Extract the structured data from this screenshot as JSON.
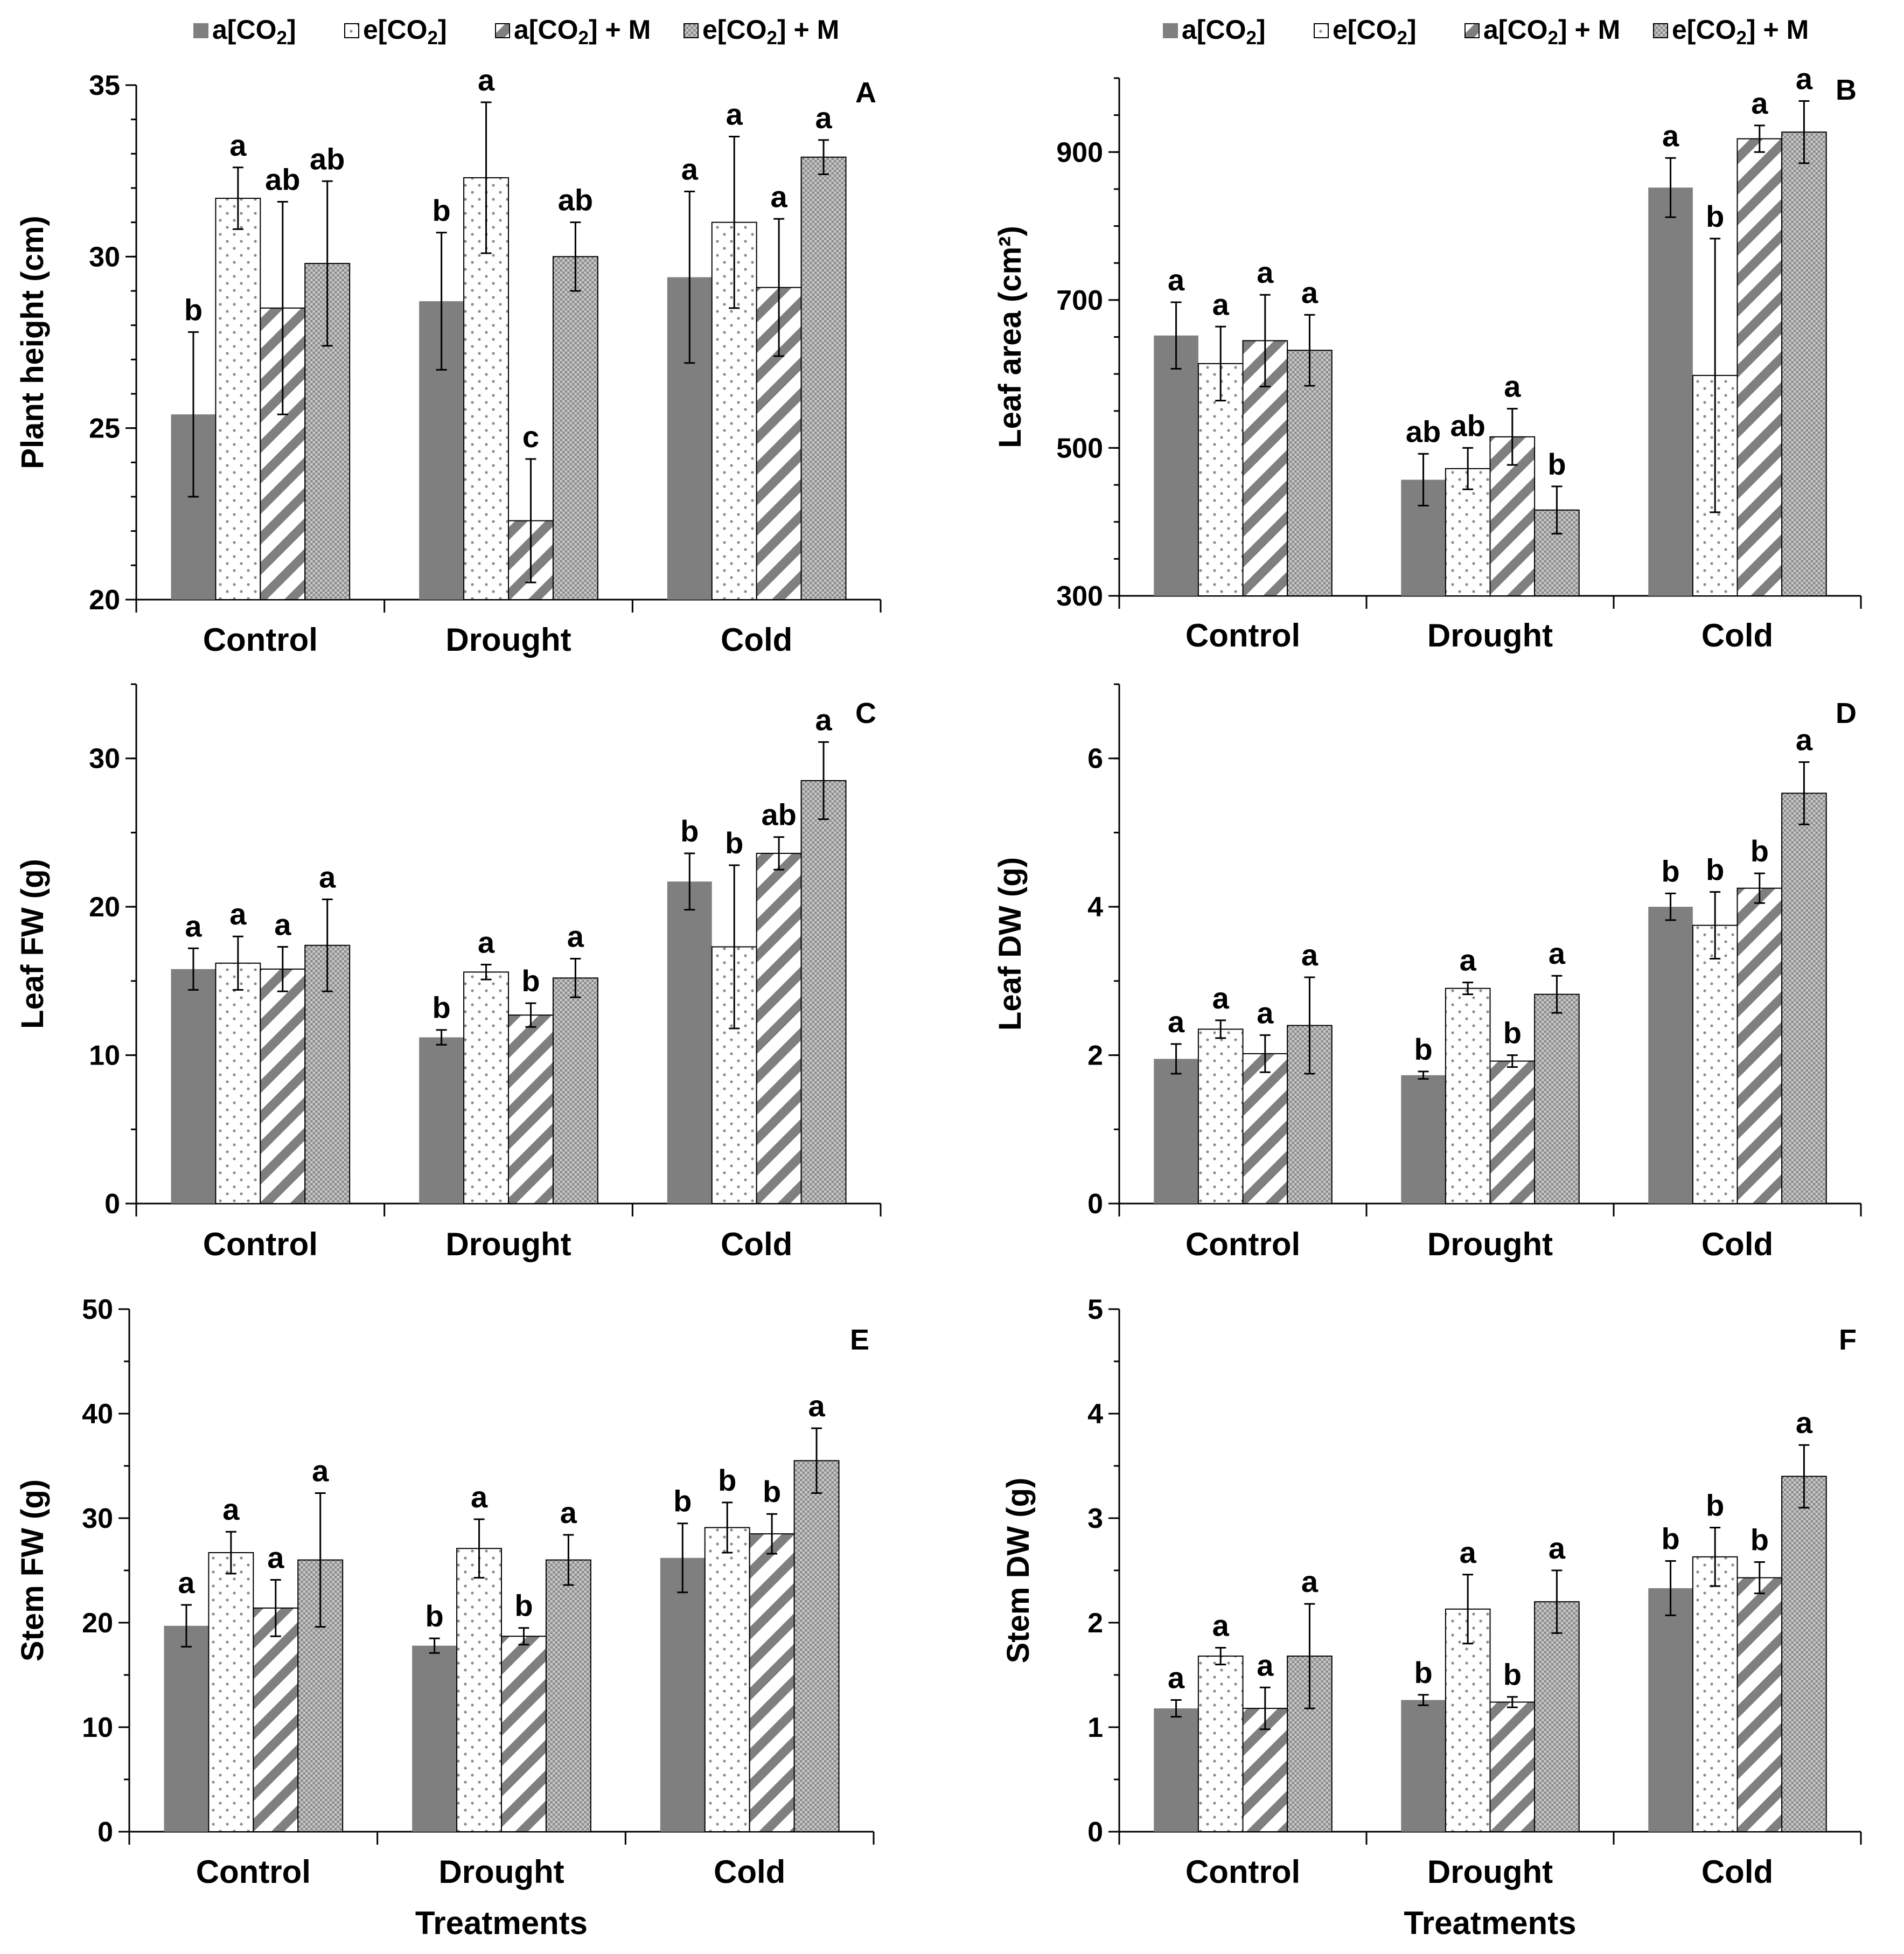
{
  "figure": {
    "legend_items": [
      "a[CO2]",
      "e[CO2]",
      "a[CO2] + M",
      "e[CO2] + M"
    ],
    "colors": {
      "solid": "#7f7f7f",
      "hatch": "#7f7f7f",
      "frame": "#000000"
    }
  },
  "chart_data": [
    {
      "type": "bar",
      "panel": "A",
      "ylabel": "Plant height (cm)",
      "xlabel": "",
      "categories": [
        "Control",
        "Drought",
        "Cold"
      ],
      "ylim": [
        20,
        35
      ],
      "yticks": [
        20,
        25,
        30,
        35
      ],
      "minor_step": 1,
      "legend_position": "top",
      "series": [
        {
          "name": "a[CO2]",
          "values": [
            25.4,
            28.7,
            29.4
          ],
          "errors": [
            2.4,
            2.0,
            2.5
          ],
          "letters": [
            "b",
            "b",
            "a"
          ]
        },
        {
          "name": "e[CO2]",
          "values": [
            31.7,
            32.3,
            31.0
          ],
          "errors": [
            0.9,
            2.2,
            2.5
          ],
          "letters": [
            "a",
            "a",
            "a"
          ]
        },
        {
          "name": "a[CO2] + M",
          "values": [
            28.5,
            22.3,
            29.1
          ],
          "errors": [
            3.1,
            1.8,
            2.0
          ],
          "letters": [
            "ab",
            "c",
            "a"
          ]
        },
        {
          "name": "e[CO2] + M",
          "values": [
            29.8,
            30.0,
            32.9
          ],
          "errors": [
            2.4,
            1.0,
            0.5
          ],
          "letters": [
            "ab",
            "ab",
            "a"
          ]
        }
      ]
    },
    {
      "type": "bar",
      "panel": "B",
      "ylabel": "Leaf area (cm²)",
      "xlabel": "",
      "categories": [
        "Control",
        "Drought",
        "Cold"
      ],
      "ylim": [
        300,
        1000
      ],
      "yticks": [
        300,
        500,
        700,
        900
      ],
      "minor_step": 50,
      "legend_position": "top",
      "series": [
        {
          "name": "a[CO2]",
          "values": [
            652,
            457,
            852
          ],
          "errors": [
            45,
            35,
            40
          ],
          "letters": [
            "a",
            "ab",
            "a"
          ]
        },
        {
          "name": "e[CO2]",
          "values": [
            614,
            472,
            598
          ],
          "errors": [
            50,
            28,
            185
          ],
          "letters": [
            "a",
            "ab",
            "b"
          ]
        },
        {
          "name": "a[CO2] + M",
          "values": [
            645,
            515,
            918
          ],
          "errors": [
            62,
            38,
            18
          ],
          "letters": [
            "a",
            "a",
            "a"
          ]
        },
        {
          "name": "e[CO2] + M",
          "values": [
            632,
            416,
            927
          ],
          "errors": [
            48,
            32,
            42
          ],
          "letters": [
            "a",
            "b",
            "a"
          ]
        }
      ]
    },
    {
      "type": "bar",
      "panel": "C",
      "ylabel": "Leaf FW (g)",
      "xlabel": "",
      "categories": [
        "Control",
        "Drought",
        "Cold"
      ],
      "ylim": [
        0,
        35
      ],
      "yticks": [
        0,
        10,
        20,
        30
      ],
      "minor_step": 5,
      "series": [
        {
          "name": "a[CO2]",
          "values": [
            15.8,
            11.2,
            21.7
          ],
          "errors": [
            1.4,
            0.5,
            1.9
          ],
          "letters": [
            "a",
            "b",
            "b"
          ]
        },
        {
          "name": "e[CO2]",
          "values": [
            16.2,
            15.6,
            17.3
          ],
          "errors": [
            1.8,
            0.5,
            5.5
          ],
          "letters": [
            "a",
            "a",
            "b"
          ]
        },
        {
          "name": "a[CO2] + M",
          "values": [
            15.8,
            12.7,
            23.6
          ],
          "errors": [
            1.5,
            0.8,
            1.1
          ],
          "letters": [
            "a",
            "b",
            "ab"
          ]
        },
        {
          "name": "e[CO2] + M",
          "values": [
            17.4,
            15.2,
            28.5
          ],
          "errors": [
            3.1,
            1.3,
            2.6
          ],
          "letters": [
            "a",
            "a",
            "a"
          ]
        }
      ]
    },
    {
      "type": "bar",
      "panel": "D",
      "ylabel": "Leaf DW (g)",
      "xlabel": "",
      "categories": [
        "Control",
        "Drought",
        "Cold"
      ],
      "ylim": [
        0,
        7
      ],
      "yticks": [
        0,
        2,
        4,
        6
      ],
      "minor_step": 1,
      "series": [
        {
          "name": "a[CO2]",
          "values": [
            1.95,
            1.73,
            4.0
          ],
          "errors": [
            0.2,
            0.05,
            0.18
          ],
          "letters": [
            "a",
            "b",
            "b"
          ]
        },
        {
          "name": "e[CO2]",
          "values": [
            2.35,
            2.9,
            3.75
          ],
          "errors": [
            0.12,
            0.08,
            0.45
          ],
          "letters": [
            "a",
            "a",
            "b"
          ]
        },
        {
          "name": "a[CO2] + M",
          "values": [
            2.02,
            1.92,
            4.25
          ],
          "errors": [
            0.25,
            0.08,
            0.2
          ],
          "letters": [
            "a",
            "b",
            "b"
          ]
        },
        {
          "name": "e[CO2] + M",
          "values": [
            2.4,
            2.82,
            5.53
          ],
          "errors": [
            0.65,
            0.25,
            0.42
          ],
          "letters": [
            "a",
            "a",
            "a"
          ]
        }
      ]
    },
    {
      "type": "bar",
      "panel": "E",
      "ylabel": "Stem FW (g)",
      "xlabel": "Treatments",
      "categories": [
        "Control",
        "Drought",
        "Cold"
      ],
      "ylim": [
        0,
        50
      ],
      "yticks": [
        0,
        10,
        20,
        30,
        40,
        50
      ],
      "minor_step": 5,
      "series": [
        {
          "name": "a[CO2]",
          "values": [
            19.7,
            17.8,
            26.2
          ],
          "errors": [
            2.0,
            0.7,
            3.3
          ],
          "letters": [
            "a",
            "b",
            "b"
          ]
        },
        {
          "name": "e[CO2]",
          "values": [
            26.7,
            27.1,
            29.1
          ],
          "errors": [
            2.0,
            2.8,
            2.4
          ],
          "letters": [
            "a",
            "a",
            "b"
          ]
        },
        {
          "name": "a[CO2] + M",
          "values": [
            21.4,
            18.7,
            28.5
          ],
          "errors": [
            2.7,
            0.8,
            1.9
          ],
          "letters": [
            "a",
            "b",
            "b"
          ]
        },
        {
          "name": "e[CO2] + M",
          "values": [
            26.0,
            26.0,
            35.5
          ],
          "errors": [
            6.4,
            2.4,
            3.1
          ],
          "letters": [
            "a",
            "a",
            "a"
          ]
        }
      ]
    },
    {
      "type": "bar",
      "panel": "F",
      "ylabel": "Stem DW (g)",
      "xlabel": "Treatments",
      "categories": [
        "Control",
        "Drought",
        "Cold"
      ],
      "ylim": [
        0,
        5
      ],
      "yticks": [
        0,
        1,
        2,
        3,
        4,
        5
      ],
      "minor_step": 0.5,
      "series": [
        {
          "name": "a[CO2]",
          "values": [
            1.18,
            1.26,
            2.33
          ],
          "errors": [
            0.08,
            0.05,
            0.26
          ],
          "letters": [
            "a",
            "b",
            "b"
          ]
        },
        {
          "name": "e[CO2]",
          "values": [
            1.68,
            2.13,
            2.63
          ],
          "errors": [
            0.08,
            0.33,
            0.28
          ],
          "letters": [
            "a",
            "a",
            "b"
          ]
        },
        {
          "name": "a[CO2] + M",
          "values": [
            1.18,
            1.24,
            2.43
          ],
          "errors": [
            0.2,
            0.05,
            0.15
          ],
          "letters": [
            "a",
            "b",
            "b"
          ]
        },
        {
          "name": "e[CO2] + M",
          "values": [
            1.68,
            2.2,
            3.4
          ],
          "errors": [
            0.5,
            0.3,
            0.3
          ],
          "letters": [
            "a",
            "a",
            "a"
          ]
        }
      ]
    }
  ]
}
